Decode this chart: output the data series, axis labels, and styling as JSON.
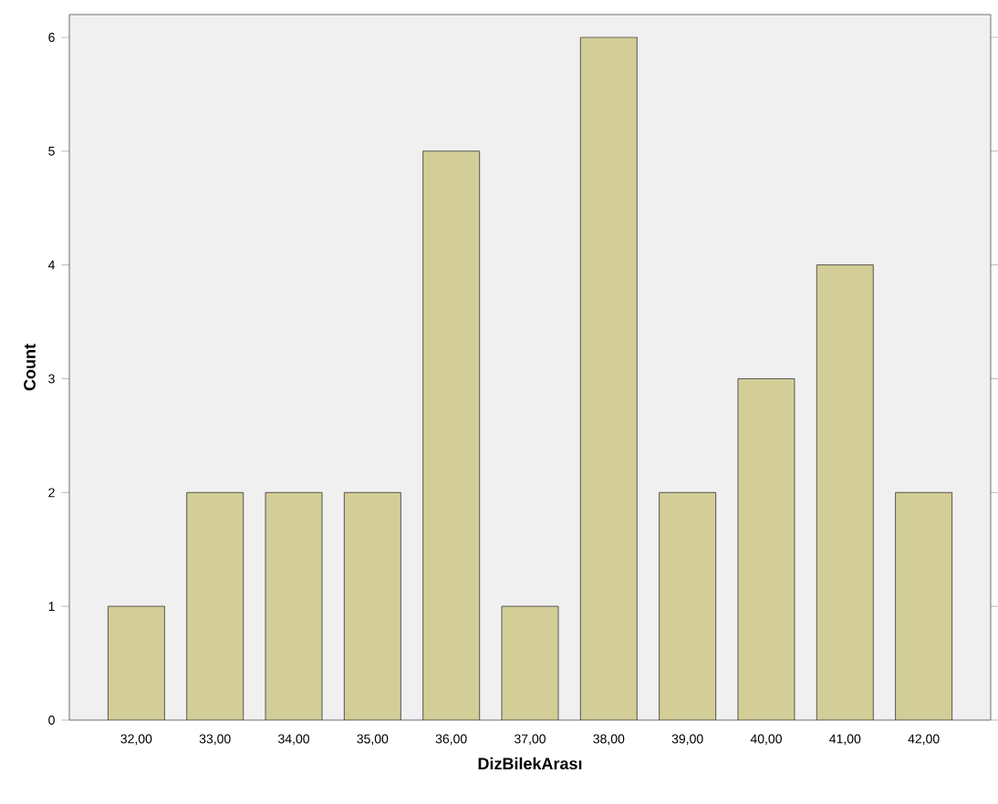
{
  "chart_data": {
    "type": "bar",
    "xlabel": "DizBilekArası",
    "ylabel": "Count",
    "categories": [
      "32,00",
      "33,00",
      "34,00",
      "35,00",
      "36,00",
      "37,00",
      "38,00",
      "39,00",
      "40,00",
      "41,00",
      "42,00"
    ],
    "values": [
      1,
      2,
      2,
      2,
      5,
      1,
      6,
      2,
      3,
      4,
      2
    ],
    "color": "#d3ce98",
    "ylim": [
      0,
      6.2
    ],
    "yticks": [
      0,
      1,
      2,
      3,
      4,
      5,
      6
    ],
    "grid": false
  }
}
